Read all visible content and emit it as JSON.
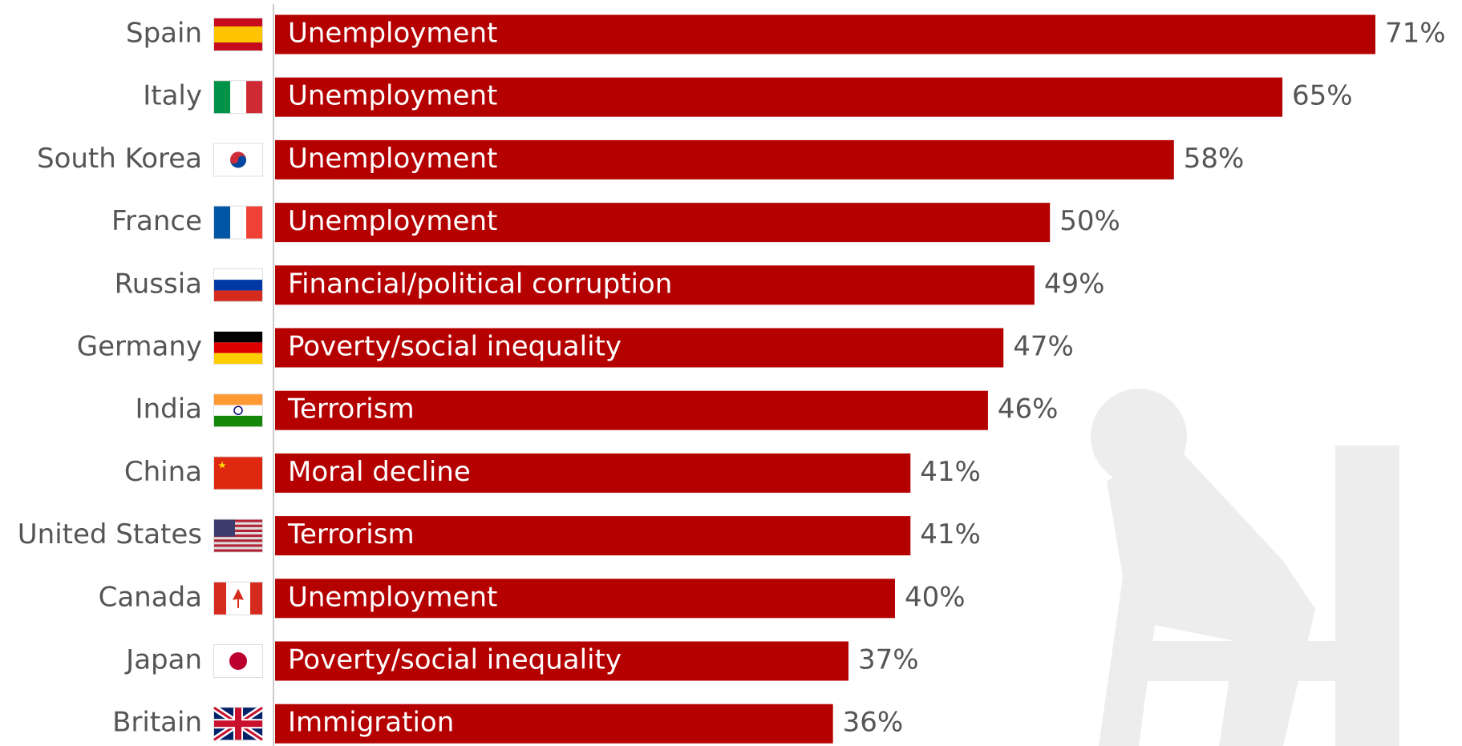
{
  "chart_data": {
    "type": "bar",
    "orientation": "horizontal",
    "color": "#b50000",
    "categories": [
      "Spain",
      "Italy",
      "South Korea",
      "France",
      "Russia",
      "Germany",
      "India",
      "China",
      "United States",
      "Canada",
      "Japan",
      "Britain"
    ],
    "bar_labels": [
      "Unemployment",
      "Unemployment",
      "Unemployment",
      "Unemployment",
      "Financial/political corruption",
      "Poverty/social inequality",
      "Terrorism",
      "Moral decline",
      "Terrorism",
      "Unemployment",
      "Poverty/social inequality",
      "Immigration"
    ],
    "values": [
      71,
      65,
      58,
      50,
      49,
      47,
      46,
      41,
      41,
      40,
      37,
      36
    ],
    "value_labels": [
      "71%",
      "65%",
      "58%",
      "50%",
      "49%",
      "47%",
      "46%",
      "41%",
      "41%",
      "40%",
      "37%",
      "36%"
    ]
  }
}
